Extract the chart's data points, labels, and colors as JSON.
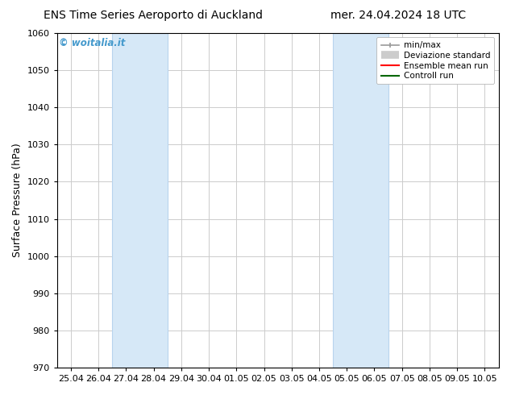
{
  "title_left": "ENS Time Series Aeroporto di Auckland",
  "title_right": "mer. 24.04.2024 18 UTC",
  "ylabel": "Surface Pressure (hPa)",
  "ylim": [
    970,
    1060
  ],
  "yticks": [
    970,
    980,
    990,
    1000,
    1010,
    1020,
    1030,
    1040,
    1050,
    1060
  ],
  "xtick_labels": [
    "25.04",
    "26.04",
    "27.04",
    "28.04",
    "29.04",
    "30.04",
    "01.05",
    "02.05",
    "03.05",
    "04.05",
    "05.05",
    "06.05",
    "07.05",
    "08.05",
    "09.05",
    "10.05"
  ],
  "xlim": [
    -0.5,
    15.5
  ],
  "shaded_bands": [
    {
      "x_start": 1.5,
      "x_end": 3.5
    },
    {
      "x_start": 9.5,
      "x_end": 11.5
    }
  ],
  "shaded_color": "#d6e8f7",
  "shaded_edge_color": "#b8d4ee",
  "watermark_text": "© woitalia.it",
  "watermark_color": "#4499cc",
  "bg_color": "#ffffff",
  "grid_color": "#cccccc",
  "font_size_title": 10,
  "font_size_axis": 9,
  "font_size_ticks": 8,
  "legend_font_size": 7.5
}
